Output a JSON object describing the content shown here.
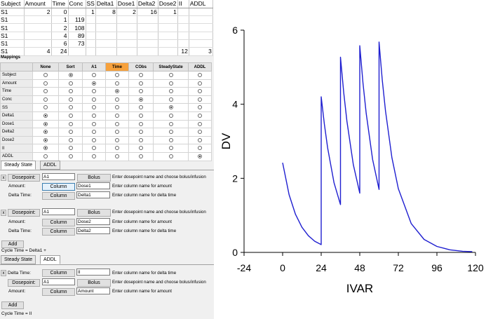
{
  "data_grid": {
    "columns": [
      "Subject",
      "Amount",
      "Time",
      "Conc",
      "SS",
      "Delta1",
      "Dose1",
      "Delta2",
      "Dose2",
      "II",
      "ADDL"
    ],
    "rows": [
      [
        "S1",
        "2",
        "0",
        "",
        "1",
        "8",
        "2",
        "16",
        "1",
        "",
        ""
      ],
      [
        "S1",
        "",
        "1",
        "119",
        "",
        "",
        "",
        "",
        "",
        "",
        ""
      ],
      [
        "S1",
        "",
        "2",
        "108",
        "",
        "",
        "",
        "",
        "",
        "",
        ""
      ],
      [
        "S1",
        "",
        "4",
        "89",
        "",
        "",
        "",
        "",
        "",
        "",
        ""
      ],
      [
        "S1",
        "",
        "6",
        "73",
        "",
        "",
        "",
        "",
        "",
        "",
        ""
      ],
      [
        "S1",
        "4",
        "24",
        "",
        "",
        "",
        "",
        "",
        "",
        "12",
        "3"
      ]
    ]
  },
  "mappings": {
    "label": "Mappings",
    "columns": [
      "None",
      "Sort",
      "A1",
      "Time",
      "CObs",
      "SteadyState",
      "ADDL"
    ],
    "highlight_column": 3,
    "rows": [
      {
        "name": "Subject",
        "selected": 1
      },
      {
        "name": "Amount",
        "selected": 2
      },
      {
        "name": "Time",
        "selected": 3
      },
      {
        "name": "Conc",
        "selected": 4
      },
      {
        "name": "SS",
        "selected": 5
      },
      {
        "name": "Delta1",
        "selected": 0
      },
      {
        "name": "Dose1",
        "selected": 0
      },
      {
        "name": "Delta2",
        "selected": 0
      },
      {
        "name": "Dose2",
        "selected": 0
      },
      {
        "name": "II",
        "selected": 0
      },
      {
        "name": "ADDL",
        "selected": 6
      }
    ]
  },
  "steady_state": {
    "tabs": [
      "Steady State",
      "ADDL"
    ],
    "blocks": [
      {
        "x_label": "x",
        "dosepoint_label": "Dosepoint:",
        "dosepoint_value": "A1",
        "bolus_label": "Bolus",
        "dosepoint_hint": "Enter dosepoint name and choose bolus/infusion",
        "amount_label": "Amount:",
        "amount_button": "Column",
        "amount_value": "Dose1",
        "amount_hint": "Enter column name for amount",
        "delta_label": "Delta Time:",
        "delta_button": "Column",
        "delta_value": "Delta1",
        "delta_hint": "Enter column name for delta time"
      },
      {
        "x_label": "x",
        "dosepoint_label": "Dosepoint:",
        "dosepoint_value": "A1",
        "bolus_label": "Bolus",
        "dosepoint_hint": "Enter dosepoint name and choose bolus/infusion",
        "amount_label": "Amount:",
        "amount_button": "Column",
        "amount_value": "Dose2",
        "amount_hint": "Enter column name for amount",
        "delta_label": "Delta Time:",
        "delta_button": "Column",
        "delta_value": "Delta2",
        "delta_hint": "Enter column name for delta time"
      }
    ],
    "add_label": "Add",
    "cycle_time": "Cycle Time = Delta1 +"
  },
  "addl": {
    "tabs": [
      "Steady State",
      "ADDL"
    ],
    "x_label": "x",
    "delta_label": "Delta Time:",
    "delta_button": "Column",
    "delta_value": "II",
    "delta_hint": "Enter column name for delta time",
    "dosepoint_label": "Dosepoint:",
    "dosepoint_value": "A1",
    "bolus_label": "Bolus",
    "dosepoint_hint": "Enter dosepoint name and choose bolus/infusion",
    "amount_label": "Amount:",
    "amount_button": "Column",
    "amount_value": "Amount",
    "amount_hint": "Enter column name for amount",
    "add_label": "Add",
    "cycle_time": "Cycle Time = II"
  },
  "chart_data": {
    "type": "line",
    "title": "",
    "xlabel": "IVAR",
    "ylabel": "DV",
    "xlim": [
      -24,
      120
    ],
    "ylim": [
      0,
      6
    ],
    "xticks": [
      -24,
      0,
      24,
      48,
      72,
      96,
      120
    ],
    "yticks": [
      0,
      2,
      4,
      6
    ],
    "color": "#1f1fd0",
    "grid": false,
    "series": [
      {
        "x": [
          0,
          4,
          8,
          12,
          16,
          20,
          24,
          24,
          26,
          28,
          32,
          36,
          36,
          38,
          40,
          44,
          48,
          48,
          50,
          52,
          56,
          60,
          60,
          62,
          64,
          68,
          72,
          80,
          88,
          96,
          104,
          112,
          118
        ],
        "y": [
          2.42,
          1.56,
          1.03,
          0.68,
          0.45,
          0.3,
          0.21,
          4.2,
          3.45,
          2.82,
          1.88,
          1.29,
          5.27,
          4.32,
          3.54,
          2.37,
          1.6,
          5.58,
          4.57,
          3.75,
          2.51,
          1.7,
          5.68,
          4.65,
          3.82,
          2.56,
          1.72,
          0.78,
          0.35,
          0.16,
          0.07,
          0.03,
          0.02
        ]
      }
    ]
  }
}
